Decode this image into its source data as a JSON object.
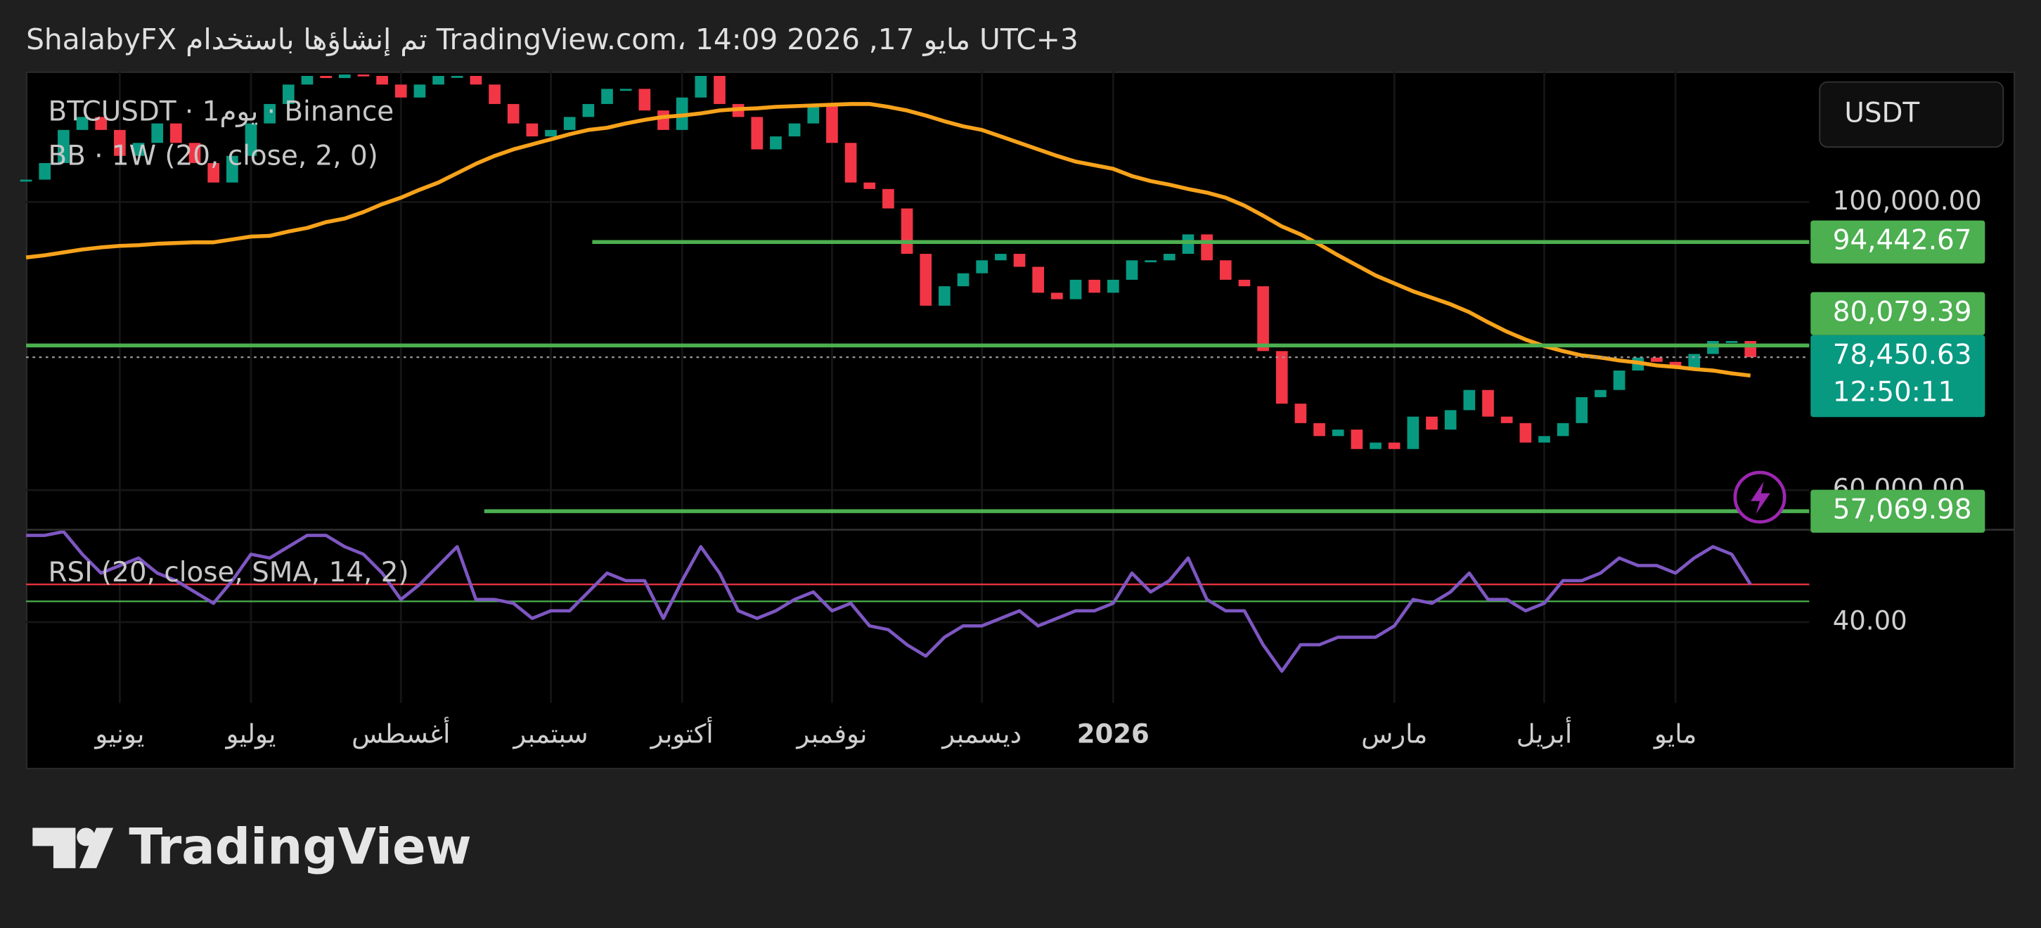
{
  "header": "ShalabyFX تم إنشاؤها باستخدام TradingView.com، 14:09 2026 ,17 مايو UTC+3",
  "chart_data": {
    "type": "candlestick",
    "title": "BTCUSDT · 1يوم · Binance",
    "currency": "USDT",
    "categories": [
      null,
      null,
      null,
      null,
      null,
      "يونيو",
      null,
      null,
      null,
      null,
      null,
      null,
      "يوليو",
      null,
      null,
      null,
      null,
      null,
      null,
      null,
      "أغسطس",
      null,
      null,
      null,
      null,
      null,
      null,
      null,
      "سبتمبر",
      null,
      null,
      null,
      null,
      null,
      null,
      "أكتوبر",
      null,
      null,
      null,
      null,
      null,
      null,
      null,
      "نوفمبر",
      null,
      null,
      null,
      null,
      null,
      null,
      null,
      "ديسمبر",
      null,
      null,
      null,
      null,
      null,
      null,
      "2026",
      null,
      null,
      null,
      null,
      null,
      null,
      null,
      null,
      null,
      null,
      null,
      null,
      null,
      null,
      "مارس",
      null,
      null,
      null,
      null,
      null,
      null,
      null,
      "أبريل",
      null,
      null,
      null,
      null,
      null,
      null,
      "مايو",
      null,
      null,
      null,
      null
    ],
    "series": [
      {
        "type": "candlestick",
        "up_color": "#089981",
        "down_color": "#f23645",
        "values": [
          103100,
          105400,
          110000,
          111800,
          110000,
          106400,
          108200,
          110900,
          108200,
          105400,
          102700,
          106400,
          110900,
          113600,
          116300,
          117500,
          117200,
          117700,
          117500,
          116300,
          114500,
          116300,
          117500,
          117500,
          116300,
          113600,
          110900,
          109100,
          110000,
          111800,
          113600,
          115700,
          115700,
          112700,
          110000,
          114500,
          117500,
          113600,
          111800,
          107300,
          109100,
          110900,
          113600,
          108200,
          102700,
          101800,
          99100,
          92800,
          85600,
          88300,
          90100,
          91900,
          92800,
          91000,
          87400,
          86500,
          89200,
          87400,
          89200,
          91900,
          91900,
          92800,
          95500,
          91900,
          89200,
          88300,
          79300,
          72000,
          69300,
          67500,
          68400,
          65700,
          66600,
          65700,
          70200,
          68400,
          71100,
          73900,
          70200,
          69300,
          66600,
          67500,
          69300,
          72900,
          73900,
          76600,
          78400,
          77800,
          76900,
          78900,
          80700,
          80700,
          78450.63
        ]
      },
      {
        "type": "line",
        "name": "BB · 1W (20, close, 2, 0)",
        "color": "#f7a21b",
        "values": [
          92300,
          92600,
          93000,
          93400,
          93700,
          93900,
          94000,
          94200,
          94300,
          94400,
          94400,
          94800,
          95200,
          95300,
          95900,
          96400,
          97200,
          97700,
          98600,
          99700,
          100600,
          101700,
          102700,
          104000,
          105300,
          106400,
          107300,
          108000,
          108700,
          109400,
          110000,
          110300,
          110900,
          111400,
          111800,
          112000,
          112300,
          112700,
          112900,
          113000,
          113200,
          113300,
          113400,
          113500,
          113600,
          113600,
          113200,
          112700,
          112000,
          111200,
          110500,
          110000,
          109100,
          108200,
          107300,
          106400,
          105600,
          105100,
          104600,
          103600,
          102900,
          102400,
          101800,
          101300,
          100600,
          99500,
          98100,
          96600,
          95500,
          94100,
          92600,
          91200,
          89800,
          88700,
          87600,
          86700,
          85800,
          84700,
          83300,
          82000,
          80900,
          80000,
          79300,
          78700,
          78400,
          78000,
          77700,
          77300,
          77100,
          76800,
          76600,
          76200,
          75900
        ]
      }
    ],
    "ylim": [
      54500,
      118100
    ],
    "yticks": [
      {
        "value": 100000,
        "label": "100,000.00"
      },
      {
        "value": 60000,
        "label": "60,000.00"
      }
    ],
    "grid": true,
    "levels": [
      {
        "value": 94442.67,
        "label": "94,442.67",
        "color": "#4caf50"
      },
      {
        "value": 80079.39,
        "label": "80,079.39",
        "color": "#4caf50"
      },
      {
        "value": 57069.98,
        "label": "57,069.98",
        "color": "#4caf50"
      }
    ],
    "last_price": {
      "value": 78450.63,
      "label": "78,450.63",
      "countdown": "12:50:11",
      "color": "#089981"
    },
    "rsi_pane": {
      "title": "RSI (20, close, SMA, 14, 2)",
      "color": "#7e57c2",
      "values": [
        63,
        63,
        64,
        58,
        53,
        55,
        57,
        53,
        51,
        48,
        45,
        51,
        58,
        57,
        60,
        63,
        63,
        60,
        58,
        53,
        46,
        50,
        55,
        60,
        46,
        46,
        45,
        41,
        43,
        43,
        48,
        53,
        51,
        51,
        41,
        51,
        60,
        53,
        43,
        41,
        43,
        46,
        48,
        43,
        45,
        39,
        38,
        34,
        31,
        36,
        39,
        39,
        41,
        43,
        39,
        41,
        43,
        43,
        45,
        53,
        48,
        51,
        57,
        46,
        43,
        43,
        34,
        27,
        34,
        34,
        36,
        36,
        36,
        39,
        46,
        45,
        48,
        53,
        46,
        46,
        43,
        45,
        51,
        51,
        53,
        57,
        55,
        55,
        53,
        57,
        60,
        58,
        50
      ],
      "ylim": [
        18.6,
        64.5
      ],
      "yticks": [
        {
          "value": 40,
          "label": "40.00"
        }
      ],
      "levels": [
        {
          "value": 50,
          "color": "#f23645"
        },
        {
          "value": 45.5,
          "color": "#4caf50"
        }
      ]
    }
  },
  "footer_logo": "TradingView"
}
